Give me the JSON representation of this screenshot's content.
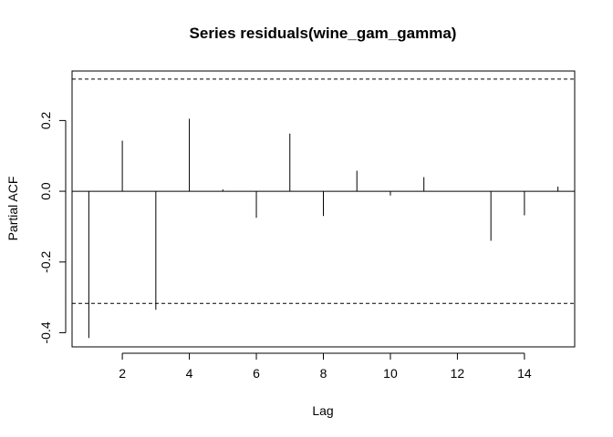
{
  "chart_data": {
    "type": "bar",
    "title": "Series  residuals(wine_gam_gamma)",
    "xlabel": "Lag",
    "ylabel": "Partial ACF",
    "x": [
      1,
      2,
      3,
      4,
      5,
      6,
      7,
      8,
      9,
      10,
      11,
      12,
      13,
      14,
      15
    ],
    "values": [
      -0.415,
      0.143,
      -0.335,
      0.205,
      0.005,
      -0.075,
      0.163,
      -0.07,
      0.058,
      -0.012,
      0.04,
      0.0,
      -0.14,
      -0.068,
      0.013
    ],
    "confidence_bound": 0.317,
    "xlim": [
      0.5,
      15.5
    ],
    "ylim": [
      -0.44,
      0.34
    ],
    "xticks": [
      2,
      4,
      6,
      8,
      10,
      12,
      14
    ],
    "yticks": [
      -0.4,
      -0.2,
      0.0,
      0.2
    ],
    "xtick_labels": [
      "2",
      "4",
      "6",
      "8",
      "10",
      "12",
      "14"
    ],
    "ytick_labels": [
      "-0.4",
      "-0.2",
      "0.0",
      "0.2"
    ],
    "grid": false,
    "colors": {
      "bars": "#000000",
      "zero_line": "#000000",
      "confidence_line": "#000000",
      "frame": "#000000"
    }
  }
}
